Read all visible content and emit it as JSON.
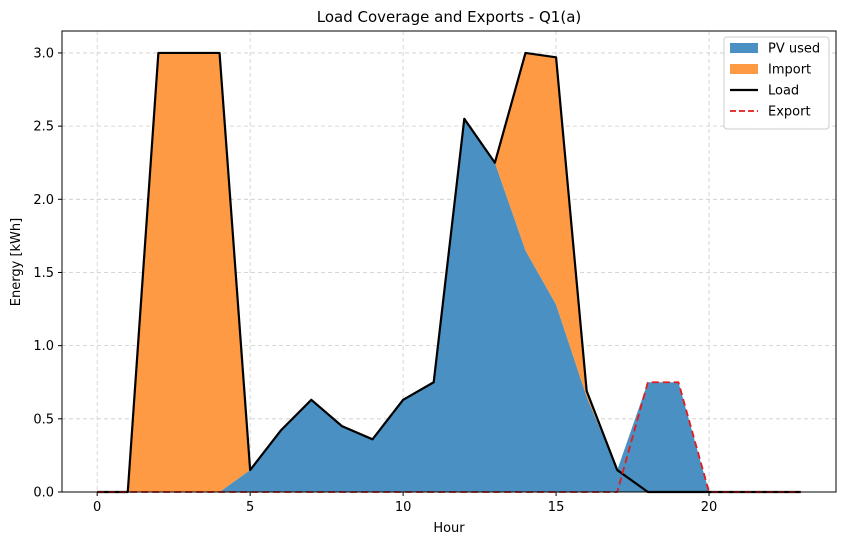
{
  "chart_data": {
    "type": "area",
    "title": "Load Coverage and Exports - Q1(a)",
    "xlabel": "Hour",
    "ylabel": "Energy [kWh]",
    "xlim": [
      -1.15,
      24.15
    ],
    "ylim": [
      0,
      3.15
    ],
    "xticks": [
      0,
      5,
      10,
      15,
      20
    ],
    "yticks": [
      0.0,
      0.5,
      1.0,
      1.5,
      2.0,
      2.5,
      3.0
    ],
    "ytick_labels": [
      "0.0",
      "0.5",
      "1.0",
      "1.5",
      "2.0",
      "2.5",
      "3.0"
    ],
    "grid": true,
    "legend_position": "top-right",
    "x": [
      0,
      1,
      2,
      3,
      4,
      5,
      6,
      7,
      8,
      9,
      10,
      11,
      12,
      13,
      14,
      15,
      16,
      17,
      18,
      19,
      20,
      21,
      22,
      23
    ],
    "series": [
      {
        "name": "PV used",
        "style": "stacked-area",
        "color": "#4a90c2",
        "values": [
          0,
          0,
          0,
          0,
          0,
          0.15,
          0.42,
          0.63,
          0.45,
          0.36,
          0.63,
          0.75,
          2.55,
          2.25,
          1.65,
          1.28,
          0.65,
          0.15,
          0.75,
          0.75,
          0,
          0,
          0,
          0
        ]
      },
      {
        "name": "Import",
        "style": "stacked-area",
        "color": "#fd9a43",
        "values": [
          0,
          0,
          3.0,
          3.0,
          3.0,
          0,
          0,
          0,
          0,
          0,
          0,
          0,
          0,
          0,
          1.35,
          1.69,
          0.04,
          0,
          0,
          0,
          0,
          0,
          0,
          0
        ]
      },
      {
        "name": "Load",
        "style": "line",
        "color": "#000000",
        "values": [
          0,
          0,
          3.0,
          3.0,
          3.0,
          0.15,
          0.42,
          0.63,
          0.45,
          0.36,
          0.63,
          0.75,
          2.55,
          2.25,
          3.0,
          2.97,
          0.69,
          0.15,
          0,
          0,
          0,
          0,
          0,
          0
        ]
      },
      {
        "name": "Export",
        "style": "dashed-line",
        "color": "#e41a1c",
        "values": [
          0,
          0,
          0,
          0,
          0,
          0,
          0,
          0,
          0,
          0,
          0,
          0,
          0,
          0,
          0,
          0,
          0,
          0,
          0.75,
          0.75,
          0,
          0,
          0,
          0
        ]
      }
    ]
  }
}
